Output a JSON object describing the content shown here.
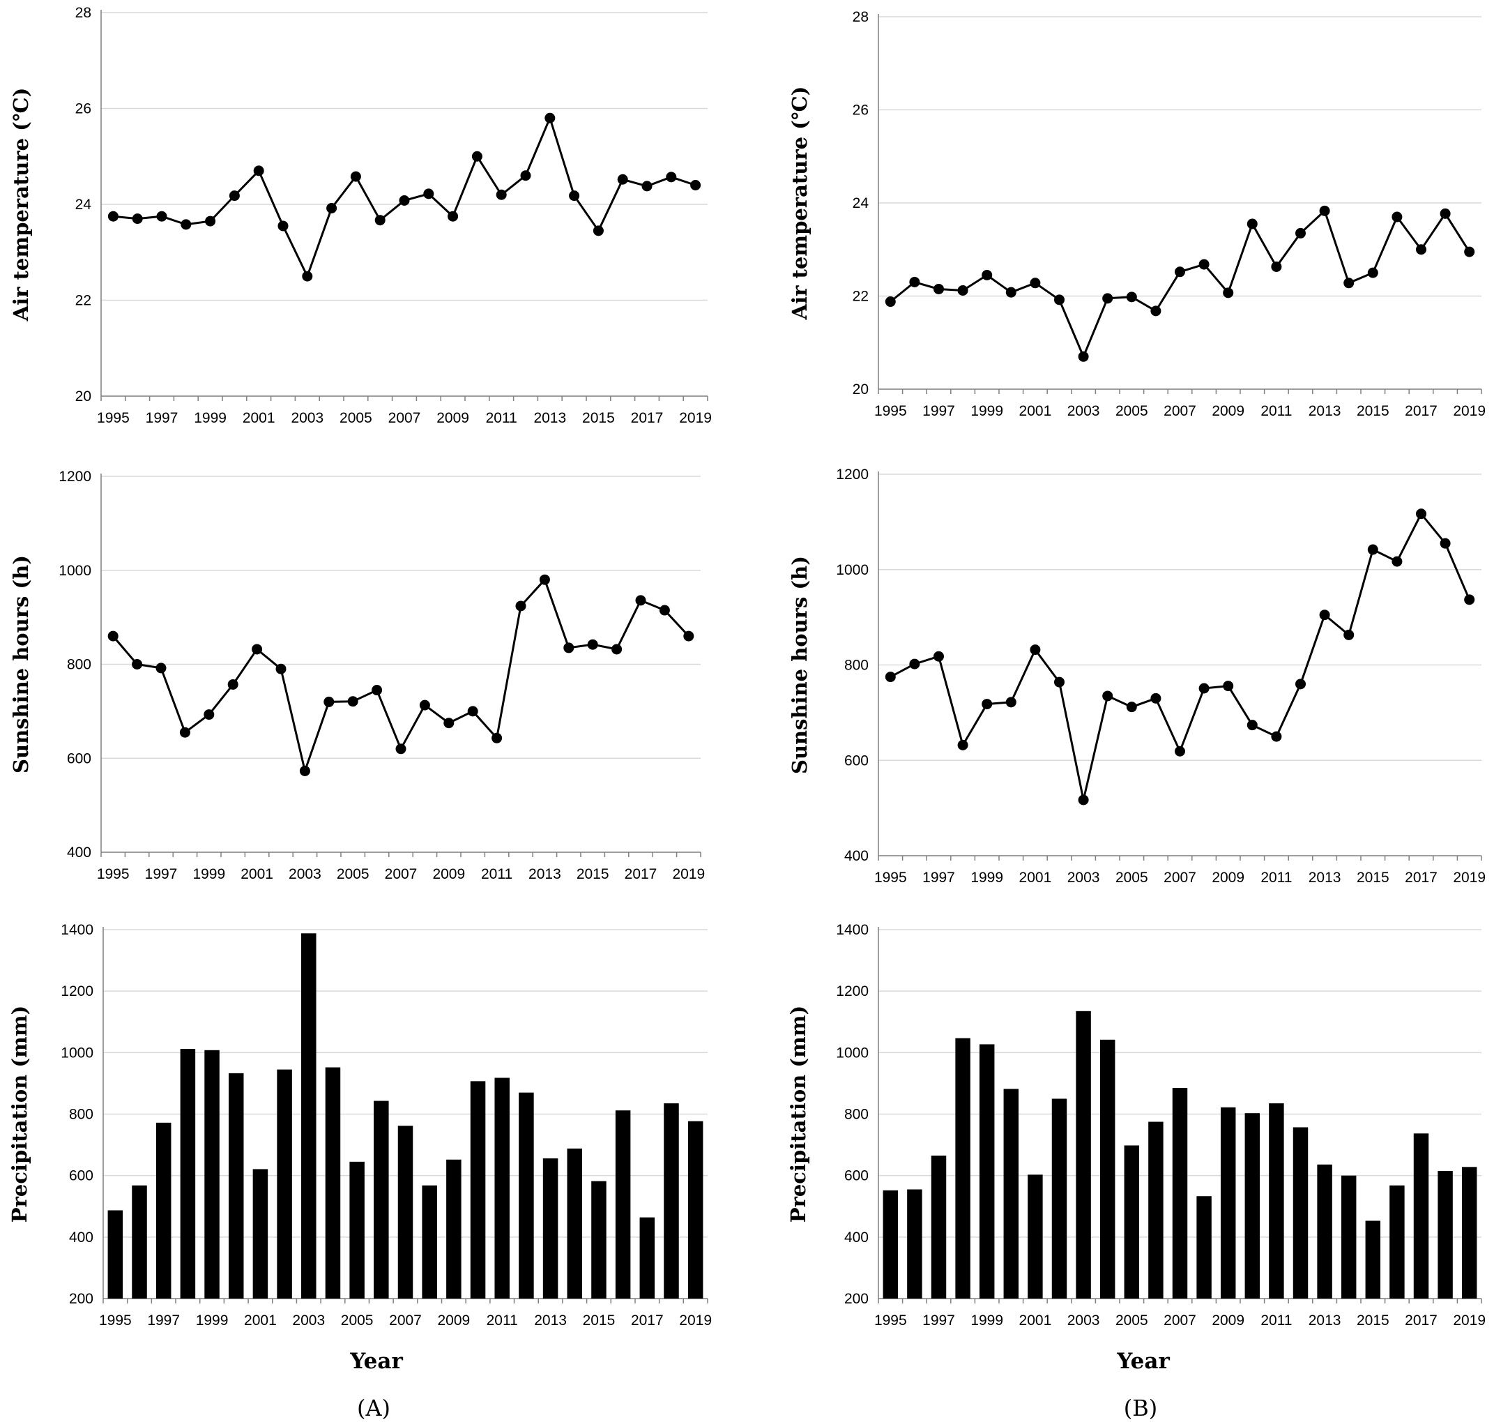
{
  "panels": [
    {
      "label": "(A)",
      "xlabel": "Year"
    },
    {
      "label": "(B)",
      "xlabel": "Year"
    }
  ],
  "chart_data": [
    {
      "type": "line",
      "panel": "A",
      "title": "",
      "ylabel": "Air temperature (℃)",
      "xlabel": "",
      "ylim": [
        20,
        28
      ],
      "yticks": [
        20,
        22,
        24,
        26,
        28
      ],
      "x": [
        1995,
        1996,
        1997,
        1998,
        1999,
        2000,
        2001,
        2002,
        2003,
        2004,
        2005,
        2006,
        2007,
        2008,
        2009,
        2010,
        2011,
        2012,
        2013,
        2014,
        2015,
        2016,
        2017,
        2018,
        2019
      ],
      "xticks": [
        "1995",
        "1997",
        "1999",
        "2001",
        "2003",
        "2005",
        "2007",
        "2009",
        "2011",
        "2013",
        "2015",
        "2017",
        "2019"
      ],
      "values": [
        23.75,
        23.7,
        23.75,
        23.58,
        23.65,
        24.18,
        24.7,
        23.55,
        22.5,
        23.92,
        24.58,
        23.67,
        24.08,
        24.22,
        23.75,
        25.0,
        24.2,
        24.6,
        25.8,
        24.18,
        23.45,
        24.52,
        24.38,
        24.57,
        24.4
      ],
      "grid": true
    },
    {
      "type": "line",
      "panel": "B",
      "title": "",
      "ylabel": "Air temperature (℃)",
      "xlabel": "",
      "ylim": [
        20,
        28
      ],
      "yticks": [
        20,
        22,
        24,
        26,
        28
      ],
      "x": [
        1995,
        1996,
        1997,
        1998,
        1999,
        2000,
        2001,
        2002,
        2003,
        2004,
        2005,
        2006,
        2007,
        2008,
        2009,
        2010,
        2011,
        2012,
        2013,
        2014,
        2015,
        2016,
        2017,
        2018,
        2019
      ],
      "xticks": [
        "1995",
        "1997",
        "1999",
        "2001",
        "2003",
        "2005",
        "2007",
        "2009",
        "2011",
        "2013",
        "2015",
        "2017",
        "2019"
      ],
      "values": [
        21.88,
        22.3,
        22.15,
        22.12,
        22.45,
        22.08,
        22.28,
        21.92,
        20.7,
        21.95,
        21.98,
        21.68,
        22.52,
        22.68,
        22.07,
        23.55,
        22.63,
        23.35,
        23.83,
        22.28,
        22.5,
        23.7,
        23.0,
        23.77,
        22.95
      ],
      "grid": true
    },
    {
      "type": "line",
      "panel": "A",
      "title": "",
      "ylabel": "Sunshine hours (h)",
      "xlabel": "",
      "ylim": [
        400,
        1200
      ],
      "yticks": [
        400,
        600,
        800,
        1000,
        1200
      ],
      "x": [
        1995,
        1996,
        1997,
        1998,
        1999,
        2000,
        2001,
        2002,
        2003,
        2004,
        2005,
        2006,
        2007,
        2008,
        2009,
        2010,
        2011,
        2012,
        2013,
        2014,
        2015,
        2016,
        2017,
        2018,
        2019
      ],
      "xticks": [
        "1995",
        "1997",
        "1999",
        "2001",
        "2003",
        "2005",
        "2007",
        "2009",
        "2011",
        "2013",
        "2015",
        "2017",
        "2019"
      ],
      "values": [
        860,
        800,
        792,
        655,
        693,
        757,
        832,
        790,
        573,
        720,
        721,
        745,
        620,
        713,
        675,
        700,
        643,
        924,
        980,
        835,
        842,
        832,
        936,
        915,
        860
      ],
      "grid": true
    },
    {
      "type": "line",
      "panel": "B",
      "title": "",
      "ylabel": "Sunshine hours (h)",
      "xlabel": "",
      "ylim": [
        400,
        1200
      ],
      "yticks": [
        400,
        600,
        800,
        1000,
        1200
      ],
      "x": [
        1995,
        1996,
        1997,
        1998,
        1999,
        2000,
        2001,
        2002,
        2003,
        2004,
        2005,
        2006,
        2007,
        2008,
        2009,
        2010,
        2011,
        2012,
        2013,
        2014,
        2015,
        2016,
        2017,
        2018,
        2019
      ],
      "xticks": [
        "1995",
        "1997",
        "1999",
        "2001",
        "2003",
        "2005",
        "2007",
        "2009",
        "2011",
        "2013",
        "2015",
        "2017",
        "2019"
      ],
      "values": [
        775,
        802,
        818,
        632,
        718,
        722,
        832,
        764,
        517,
        735,
        712,
        730,
        619,
        751,
        756,
        674,
        650,
        760,
        905,
        863,
        1042,
        1017,
        1117,
        1055,
        937
      ],
      "grid": true
    },
    {
      "type": "bar",
      "panel": "A",
      "title": "",
      "ylabel": "Precipitation (mm)",
      "xlabel": "",
      "ylim": [
        200,
        1400
      ],
      "yticks": [
        200,
        400,
        600,
        800,
        1000,
        1200,
        1400
      ],
      "x": [
        1995,
        1996,
        1997,
        1998,
        1999,
        2000,
        2001,
        2002,
        2003,
        2004,
        2005,
        2006,
        2007,
        2008,
        2009,
        2010,
        2011,
        2012,
        2013,
        2014,
        2015,
        2016,
        2017,
        2018,
        2019
      ],
      "xticks": [
        "1995",
        "1997",
        "1999",
        "2001",
        "2003",
        "2005",
        "2007",
        "2009",
        "2011",
        "2013",
        "2015",
        "2017",
        "2019"
      ],
      "values": [
        487,
        568,
        772,
        1012,
        1008,
        933,
        621,
        945,
        1388,
        952,
        645,
        843,
        762,
        568,
        652,
        907,
        918,
        870,
        656,
        688,
        582,
        812,
        464,
        835,
        777
      ],
      "grid": true
    },
    {
      "type": "bar",
      "panel": "B",
      "title": "",
      "ylabel": "Precipitation (mm)",
      "xlabel": "",
      "ylim": [
        200,
        1400
      ],
      "yticks": [
        200,
        400,
        600,
        800,
        1000,
        1200,
        1400
      ],
      "x": [
        1995,
        1996,
        1997,
        1998,
        1999,
        2000,
        2001,
        2002,
        2003,
        2004,
        2005,
        2006,
        2007,
        2008,
        2009,
        2010,
        2011,
        2012,
        2013,
        2014,
        2015,
        2016,
        2017,
        2018,
        2019
      ],
      "xticks": [
        "1995",
        "1997",
        "1999",
        "2001",
        "2003",
        "2005",
        "2007",
        "2009",
        "2011",
        "2013",
        "2015",
        "2017",
        "2019"
      ],
      "values": [
        552,
        555,
        665,
        1047,
        1027,
        882,
        603,
        850,
        1135,
        1042,
        698,
        775,
        885,
        533,
        822,
        803,
        835,
        757,
        636,
        600,
        453,
        568,
        737,
        615,
        628
      ],
      "grid": true
    }
  ]
}
